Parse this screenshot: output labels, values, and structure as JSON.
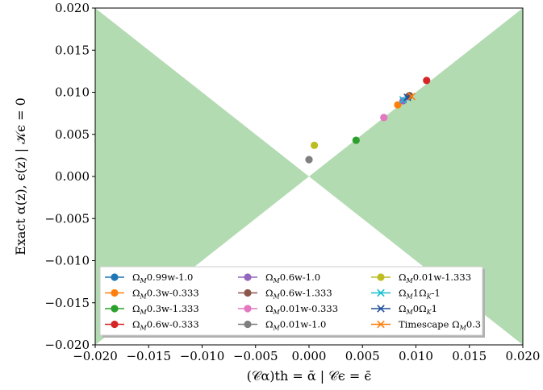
{
  "chart_data": {
    "type": "scatter",
    "title": "",
    "xlabel": "(𝒞α)th = ᾱ    |    𝒞ϵ = ϵ̄",
    "ylabel": "Exact α(z), ϵ(z)    |    𝒦ϵ = 0",
    "xlim": [
      -0.02,
      0.02
    ],
    "ylim": [
      -0.02,
      0.02
    ],
    "xticks": [
      "−0.020",
      "−0.015",
      "−0.010",
      "−0.005",
      "0.000",
      "0.005",
      "0.010",
      "0.015",
      "0.020"
    ],
    "yticks": [
      "−0.020",
      "−0.015",
      "−0.010",
      "−0.005",
      "0.000",
      "0.005",
      "0.010",
      "0.015",
      "0.020"
    ],
    "xtick_values": [
      -0.02,
      -0.015,
      -0.01,
      -0.005,
      0,
      0.005,
      0.01,
      0.015,
      0.02
    ],
    "ytick_values": [
      -0.02,
      -0.015,
      -0.01,
      -0.005,
      0,
      0.005,
      0.01,
      0.015,
      0.02
    ],
    "shaded_region": {
      "description": "|y| >= |x|",
      "color": "#b3dbb2"
    },
    "legend_position": "lower-center",
    "series": [
      {
        "name": "ΩM0.99w-1.0",
        "color": "#1f77b4",
        "marker": "o",
        "points": [
          [
            0.0093,
            0.0095
          ]
        ]
      },
      {
        "name": "ΩM0.3w-0.333",
        "color": "#ff7f0e",
        "marker": "o",
        "points": [
          [
            0.0083,
            0.0085
          ]
        ]
      },
      {
        "name": "ΩM0.3w-1.333",
        "color": "#2ca02c",
        "marker": "o",
        "points": [
          [
            0.0044,
            0.0043
          ]
        ]
      },
      {
        "name": "ΩM0.6w-0.333",
        "color": "#d62728",
        "marker": "o",
        "points": [
          [
            0.011,
            0.0114
          ]
        ]
      },
      {
        "name": "ΩM0.6w-1.0",
        "color": "#9467bd",
        "marker": "o",
        "points": [
          [
            0.0088,
            0.009
          ]
        ]
      },
      {
        "name": "ΩM0.6w-1.333",
        "color": "#8c564b",
        "marker": "o",
        "points": [
          [
            0.0094,
            0.0096
          ]
        ]
      },
      {
        "name": "ΩM0.01w-0.333",
        "color": "#e377c2",
        "marker": "o",
        "points": [
          [
            0.007,
            0.007
          ]
        ]
      },
      {
        "name": "ΩM0.01w-1.0",
        "color": "#7f7f7f",
        "marker": "o",
        "points": [
          [
            0.0,
            0.002
          ]
        ]
      },
      {
        "name": "ΩM0.01w-1.333",
        "color": "#bcbd22",
        "marker": "o",
        "points": [
          [
            0.0005,
            0.0037
          ]
        ]
      },
      {
        "name": "ΩM1ΩK-1",
        "color": "#17becf",
        "marker": "x",
        "points": [
          [
            0.0088,
            0.0091
          ]
        ]
      },
      {
        "name": "ΩM0ΩK1",
        "color": "#1f4e9a",
        "marker": "x",
        "points": [
          [
            0.0092,
            0.0094
          ]
        ]
      },
      {
        "name": "Timescape ΩM0.3",
        "color": "#ff7f0e",
        "marker": "x",
        "points": [
          [
            0.0096,
            0.0095
          ]
        ]
      }
    ],
    "legend_labels": [
      {
        "main": "Ω",
        "sub": "M",
        "rest": "0.99w-1.0"
      },
      {
        "main": "Ω",
        "sub": "M",
        "rest": "0.3w-0.333"
      },
      {
        "main": "Ω",
        "sub": "M",
        "rest": "0.3w-1.333"
      },
      {
        "main": "Ω",
        "sub": "M",
        "rest": "0.6w-0.333"
      },
      {
        "main": "Ω",
        "sub": "M",
        "rest": "0.6w-1.0"
      },
      {
        "main": "Ω",
        "sub": "M",
        "rest": "0.6w-1.333"
      },
      {
        "main": "Ω",
        "sub": "M",
        "rest": "0.01w-0.333"
      },
      {
        "main": "Ω",
        "sub": "M",
        "rest": "0.01w-1.0"
      },
      {
        "main": "Ω",
        "sub": "M",
        "rest": "0.01w-1.333"
      },
      {
        "main": "Ω",
        "sub": "M",
        "rest": "1Ω",
        "sub2": "K",
        "rest2": "-1"
      },
      {
        "main": "Ω",
        "sub": "M",
        "rest": "0Ω",
        "sub2": "K",
        "rest2": "1"
      },
      {
        "main": "Timescape Ω",
        "sub": "M",
        "rest": "0.3"
      }
    ]
  }
}
